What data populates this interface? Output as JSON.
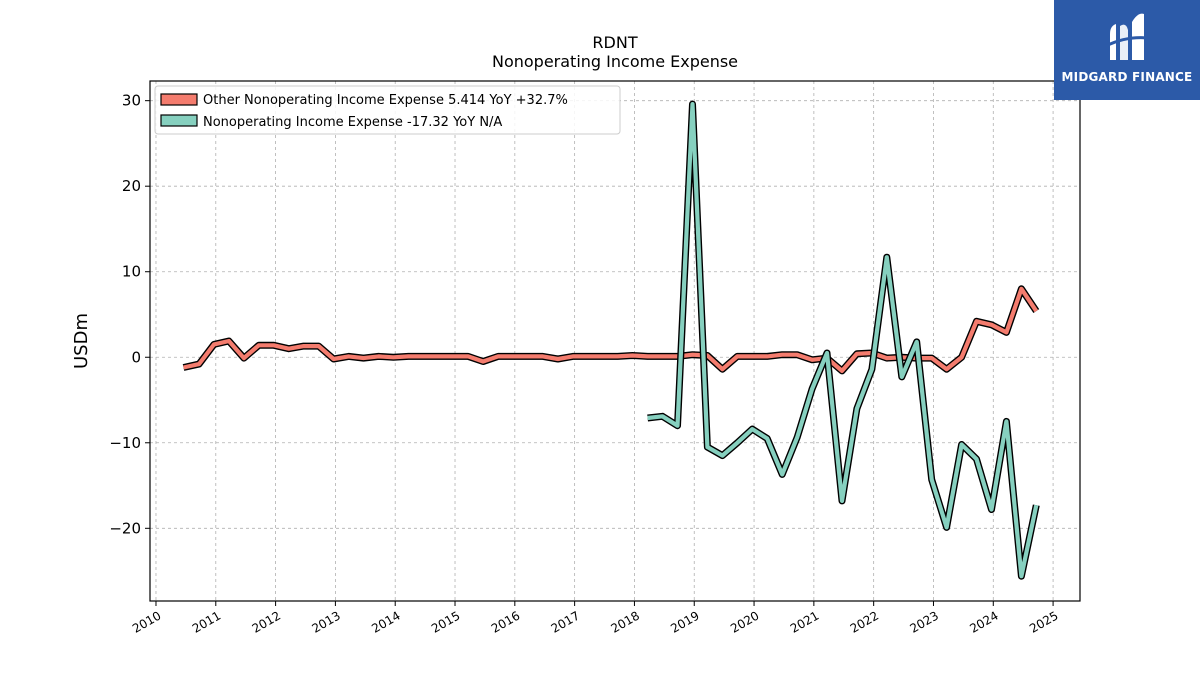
{
  "chart_data": {
    "type": "line",
    "title": "RDNT",
    "subtitle": "Nonoperating Income Expense",
    "ylabel": "USDm",
    "xlabel": "",
    "xlim": [
      2009.9,
      2025.45
    ],
    "ylim": [
      -28.5,
      32.3
    ],
    "yticks": [
      -20,
      -10,
      0,
      10,
      20,
      30
    ],
    "ytick_labels": [
      "−20",
      "−10",
      "0",
      "10",
      "20",
      "30"
    ],
    "xticks": [
      2010,
      2011,
      2012,
      2013,
      2014,
      2015,
      2016,
      2017,
      2018,
      2019,
      2020,
      2021,
      2022,
      2023,
      2024,
      2025
    ],
    "grid": true,
    "legend_position": "top-left",
    "series": [
      {
        "name": "Other Nonoperating Income Expense",
        "legend_label": "Other Nonoperating Income Expense  5.414 YoY +32.7%",
        "color": "#f47c6e",
        "points": [
          [
            2010.46,
            -1.2
          ],
          [
            2010.72,
            -0.8
          ],
          [
            2010.97,
            1.5
          ],
          [
            2011.22,
            1.9
          ],
          [
            2011.47,
            -0.1
          ],
          [
            2011.72,
            1.4
          ],
          [
            2011.97,
            1.4
          ],
          [
            2012.22,
            1.0
          ],
          [
            2012.47,
            1.3
          ],
          [
            2012.72,
            1.3
          ],
          [
            2012.97,
            -0.2
          ],
          [
            2013.22,
            0.1
          ],
          [
            2013.47,
            -0.1
          ],
          [
            2013.72,
            0.1
          ],
          [
            2013.97,
            0.0
          ],
          [
            2014.22,
            0.1
          ],
          [
            2014.47,
            0.1
          ],
          [
            2014.72,
            0.1
          ],
          [
            2014.97,
            0.1
          ],
          [
            2015.22,
            0.1
          ],
          [
            2015.47,
            -0.5
          ],
          [
            2015.72,
            0.1
          ],
          [
            2015.97,
            0.1
          ],
          [
            2016.22,
            0.1
          ],
          [
            2016.47,
            0.1
          ],
          [
            2016.72,
            -0.2
          ],
          [
            2016.97,
            0.1
          ],
          [
            2017.22,
            0.1
          ],
          [
            2017.47,
            0.1
          ],
          [
            2017.72,
            0.1
          ],
          [
            2017.97,
            0.2
          ],
          [
            2018.22,
            0.1
          ],
          [
            2018.47,
            0.1
          ],
          [
            2018.72,
            0.1
          ],
          [
            2018.97,
            0.3
          ],
          [
            2019.22,
            0.2
          ],
          [
            2019.47,
            -1.4
          ],
          [
            2019.72,
            0.1
          ],
          [
            2019.97,
            0.1
          ],
          [
            2020.22,
            0.1
          ],
          [
            2020.47,
            0.3
          ],
          [
            2020.72,
            0.3
          ],
          [
            2020.97,
            -0.3
          ],
          [
            2021.22,
            -0.1
          ],
          [
            2021.47,
            -1.6
          ],
          [
            2021.72,
            0.4
          ],
          [
            2021.97,
            0.5
          ],
          [
            2022.22,
            -0.1
          ],
          [
            2022.47,
            0.0
          ],
          [
            2022.72,
            -0.1
          ],
          [
            2022.97,
            -0.1
          ],
          [
            2023.22,
            -1.4
          ],
          [
            2023.47,
            0.0
          ],
          [
            2023.72,
            4.2
          ],
          [
            2023.97,
            3.8
          ],
          [
            2024.22,
            2.9
          ],
          [
            2024.47,
            8.0
          ],
          [
            2024.72,
            5.4
          ]
        ]
      },
      {
        "name": "Nonoperating Income Expense",
        "legend_label": "Nonoperating Income Expense  -17.32 YoY N/A",
        "color": "#86d0bf",
        "points": [
          [
            2018.22,
            -7.1
          ],
          [
            2018.47,
            -6.9
          ],
          [
            2018.72,
            -8.0
          ],
          [
            2018.97,
            29.6
          ],
          [
            2019.22,
            -10.5
          ],
          [
            2019.47,
            -11.5
          ],
          [
            2019.72,
            -10.0
          ],
          [
            2019.97,
            -8.4
          ],
          [
            2020.22,
            -9.5
          ],
          [
            2020.47,
            -13.7
          ],
          [
            2020.72,
            -9.4
          ],
          [
            2020.97,
            -3.7
          ],
          [
            2021.22,
            0.5
          ],
          [
            2021.47,
            -16.8
          ],
          [
            2021.72,
            -6.0
          ],
          [
            2021.97,
            -1.4
          ],
          [
            2022.22,
            11.7
          ],
          [
            2022.47,
            -2.3
          ],
          [
            2022.72,
            1.8
          ],
          [
            2022.97,
            -14.3
          ],
          [
            2023.22,
            -19.9
          ],
          [
            2023.47,
            -10.2
          ],
          [
            2023.72,
            -11.9
          ],
          [
            2023.97,
            -17.8
          ],
          [
            2024.22,
            -7.5
          ],
          [
            2024.47,
            -25.6
          ],
          [
            2024.72,
            -17.3
          ]
        ]
      }
    ]
  },
  "brand": {
    "name": "MIDGARD FINANCE",
    "logo_icon": "midgard-m-logo-icon",
    "background": "#2c5aa8"
  }
}
